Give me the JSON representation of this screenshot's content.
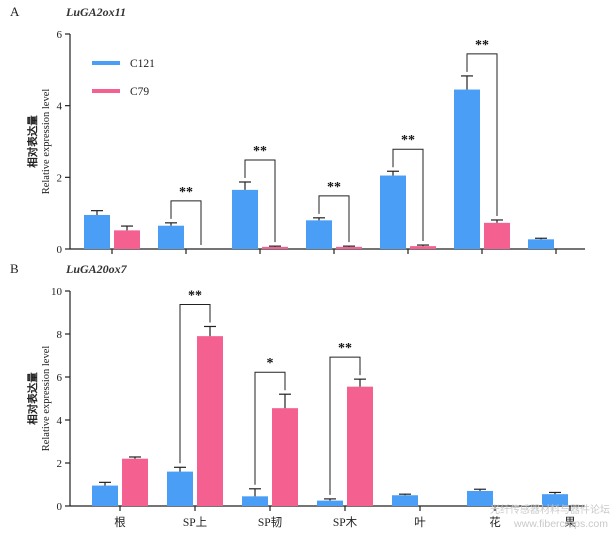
{
  "figure": {
    "watermark_line1": "光纤传感器材料与器件论坛",
    "watermark_line2": "www.fibercrops.com"
  },
  "colors": {
    "C121": "#4a9ef5",
    "C79": "#f4608f",
    "axis": "#222222"
  },
  "chart_data": [
    {
      "type": "bar",
      "panel_label": "A",
      "title": "LuGA2ox11",
      "ylabel_cn": "相对表达量",
      "ylabel_en": "Relative expression level",
      "ylim": [
        0,
        6
      ],
      "yticks": [
        0,
        2,
        4,
        6
      ],
      "categories": [
        "",
        "",
        "",
        "",
        "",
        "",
        ""
      ],
      "legend": {
        "placement": "top-left",
        "entries": [
          "C121",
          "C79"
        ]
      },
      "series": [
        {
          "name": "C121",
          "values": [
            0.95,
            0.65,
            1.65,
            0.8,
            2.05,
            4.45,
            0.27
          ],
          "errors": [
            0.12,
            0.08,
            0.22,
            0.07,
            0.12,
            0.38,
            0.03
          ]
        },
        {
          "name": "C79",
          "values": [
            0.52,
            null,
            0.06,
            0.06,
            0.08,
            0.73,
            null
          ],
          "errors": [
            0.12,
            0,
            0.02,
            0.02,
            0.03,
            0.08,
            0
          ]
        }
      ],
      "significance": [
        {
          "category_index": 1,
          "label": "**"
        },
        {
          "category_index": 2,
          "label": "**"
        },
        {
          "category_index": 3,
          "label": "**"
        },
        {
          "category_index": 4,
          "label": "**"
        },
        {
          "category_index": 5,
          "label": "**"
        }
      ]
    },
    {
      "type": "bar",
      "panel_label": "B",
      "title": "LuGA20ox7",
      "ylabel_cn": "相对表达量",
      "ylabel_en": "Relative expression level",
      "ylim": [
        0,
        10
      ],
      "yticks": [
        0,
        2,
        4,
        6,
        8,
        10
      ],
      "categories": [
        "根",
        "SP上",
        "SP韧",
        "SP木",
        "叶",
        "花",
        "果"
      ],
      "series": [
        {
          "name": "C121",
          "values": [
            0.95,
            1.6,
            0.45,
            0.25,
            0.5,
            0.7,
            0.55
          ],
          "errors": [
            0.15,
            0.2,
            0.35,
            0.08,
            0.05,
            0.08,
            0.08
          ]
        },
        {
          "name": "C79",
          "values": [
            2.2,
            7.9,
            4.55,
            5.55,
            null,
            null,
            null
          ],
          "errors": [
            0.08,
            0.45,
            0.65,
            0.35,
            0,
            0,
            0
          ]
        }
      ],
      "significance": [
        {
          "category_index": 1,
          "label": "**"
        },
        {
          "category_index": 2,
          "label": "*"
        },
        {
          "category_index": 3,
          "label": "**"
        }
      ]
    }
  ]
}
